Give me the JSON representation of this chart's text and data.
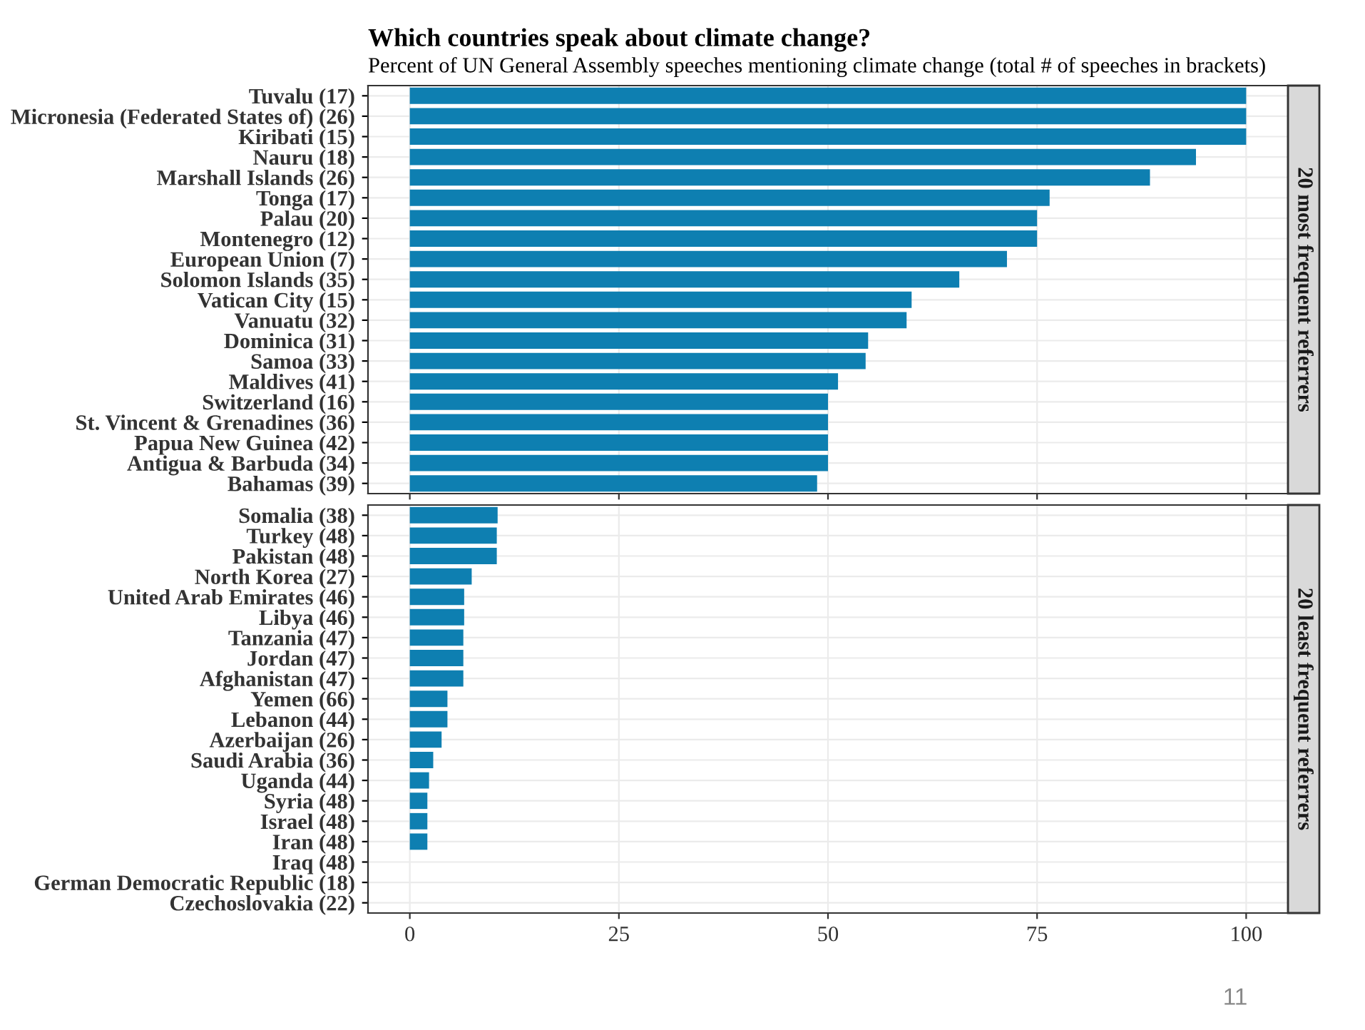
{
  "chart_data": [
    {
      "type": "bar",
      "orientation": "horizontal",
      "title": "Which countries speak about climate change?",
      "subtitle": "Percent of UN General Assembly speeches mentioning climate change (total # of speeches in brackets)",
      "y2label": "20 most frequent referrers",
      "categories": [
        "Tuvalu (17)",
        "Micronesia (Federated States of) (26)",
        "Kiribati (15)",
        "Nauru (18)",
        "Marshall Islands (26)",
        "Tonga (17)",
        "Palau (20)",
        "Montenegro (12)",
        "European Union (7)",
        "Solomon Islands (35)",
        "Vatican City (15)",
        "Vanuatu (32)",
        "Dominica (31)",
        "Samoa (33)",
        "Maldives (41)",
        "Switzerland (16)",
        "St. Vincent & Grenadines (36)",
        "Papua New Guinea (42)",
        "Antigua & Barbuda (34)",
        "Bahamas (39)"
      ],
      "values": [
        100,
        100,
        100,
        94,
        88.5,
        76.5,
        75,
        75,
        71.4,
        65.7,
        60,
        59.4,
        54.8,
        54.5,
        51.2,
        50,
        50,
        50,
        50,
        48.7
      ],
      "color": "#0e7fb1",
      "xlim": [
        -5,
        105
      ],
      "xticks": [
        0,
        25,
        50,
        75,
        100
      ],
      "grid": true,
      "tick_labels": "y"
    },
    {
      "type": "bar",
      "orientation": "horizontal",
      "y2label": "20 least frequent referrers",
      "categories": [
        "Somalia (38)",
        "Turkey (48)",
        "Pakistan (48)",
        "North Korea (27)",
        "United Arab Emirates (46)",
        "Libya (46)",
        "Tanzania (47)",
        "Jordan (47)",
        "Afghanistan (47)",
        "Yemen (66)",
        "Lebanon (44)",
        "Azerbaijan (26)",
        "Saudi Arabia (36)",
        "Uganda (44)",
        "Syria (48)",
        "Israel (48)",
        "Iran (48)",
        "Iraq (48)",
        "German Democratic Republic (18)",
        "Czechoslovakia (22)"
      ],
      "values": [
        10.5,
        10.4,
        10.4,
        7.4,
        6.5,
        6.5,
        6.4,
        6.4,
        6.4,
        4.5,
        4.5,
        3.8,
        2.8,
        2.3,
        2.1,
        2.1,
        2.1,
        0,
        0,
        0
      ],
      "color": "#0e7fb1",
      "xlim": [
        -5,
        105
      ],
      "xticks": [
        0,
        25,
        50,
        75,
        100
      ],
      "grid": true,
      "annotations": [
        "11"
      ]
    }
  ]
}
